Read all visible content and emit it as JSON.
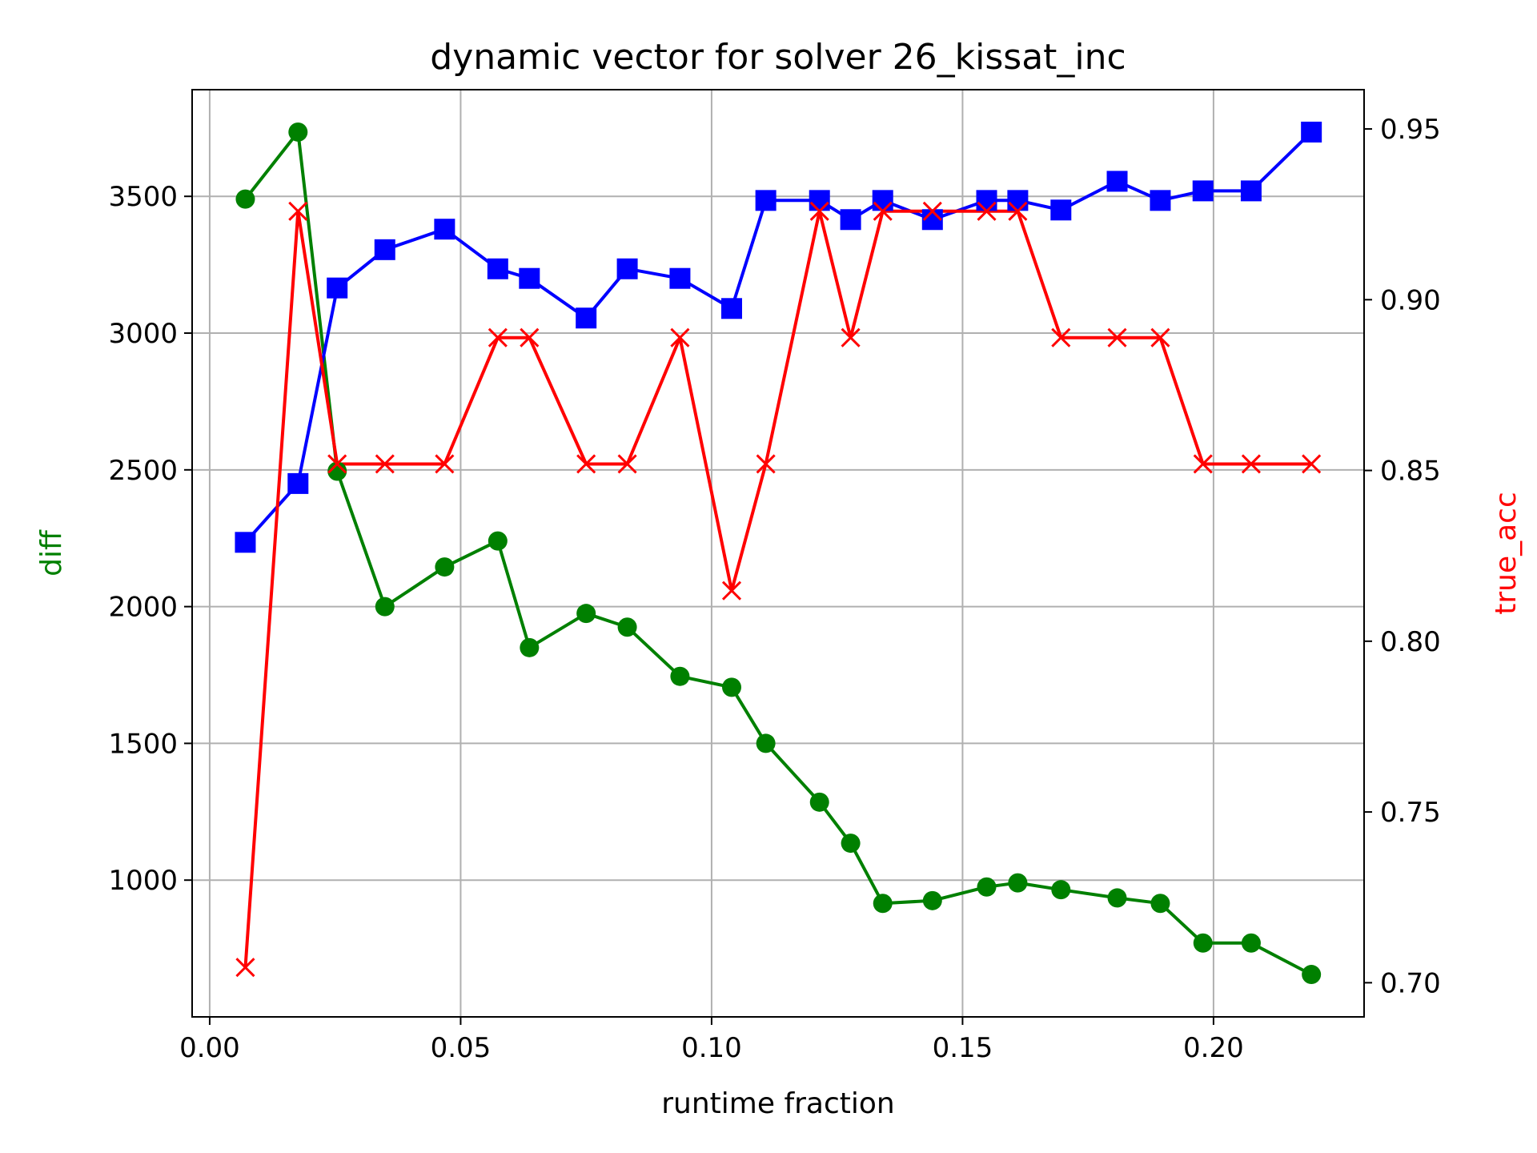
{
  "chart_data": {
    "type": "line",
    "title": "dynamic vector for solver 26_kissat_inc",
    "xlabel": "runtime fraction",
    "ylabel_left": "diff",
    "ylabel_right": "true_acc",
    "xlim": [
      -0.0035,
      0.23
    ],
    "ylim_left": [
      500,
      3890
    ],
    "ylim_right": [
      0.69,
      0.9615
    ],
    "grid": true,
    "xticks": [
      "0.00",
      "0.05",
      "0.10",
      "0.15",
      "0.20"
    ],
    "yticks_left": [
      "1000",
      "1500",
      "2000",
      "2500",
      "3000",
      "3500"
    ],
    "yticks_right": [
      "0.70",
      "0.75",
      "0.80",
      "0.85",
      "0.90",
      "0.95"
    ],
    "x": [
      0.0071,
      0.0176,
      0.0254,
      0.0349,
      0.0468,
      0.0574,
      0.0637,
      0.075,
      0.0832,
      0.0937,
      0.104,
      0.1108,
      0.1215,
      0.1277,
      0.1341,
      0.144,
      0.1548,
      0.161,
      0.1696,
      0.1808,
      0.1894,
      0.1979,
      0.2075,
      0.2195
    ],
    "series": [
      {
        "axis": "left",
        "color": "#008000",
        "marker": "circle",
        "values": [
          3490,
          3735,
          2495,
          2000,
          2145,
          2240,
          1850,
          1975,
          1925,
          1745,
          1705,
          1500,
          1285,
          1135,
          915,
          925,
          975,
          990,
          965,
          935,
          915,
          770,
          770,
          655
        ]
      },
      {
        "axis": "left",
        "color": "#0000ff",
        "marker": "square",
        "values": [
          2235,
          2450,
          3165,
          3305,
          3380,
          3235,
          3200,
          3055,
          3235,
          3200,
          3090,
          3485,
          3485,
          3415,
          3485,
          3415,
          3485,
          3485,
          3450,
          3555,
          3485,
          3520,
          3520,
          3735
        ]
      },
      {
        "axis": "right",
        "color": "#ff0000",
        "marker": "x",
        "values": [
          0.7045,
          0.9259,
          0.8519,
          0.8519,
          0.8519,
          0.8889,
          0.8889,
          0.8519,
          0.8519,
          0.8889,
          0.8148,
          0.8519,
          0.9259,
          0.8889,
          0.9259,
          0.9259,
          0.9259,
          0.9259,
          0.8889,
          0.8889,
          0.8889,
          0.8519,
          0.8519,
          0.8519
        ]
      }
    ]
  }
}
